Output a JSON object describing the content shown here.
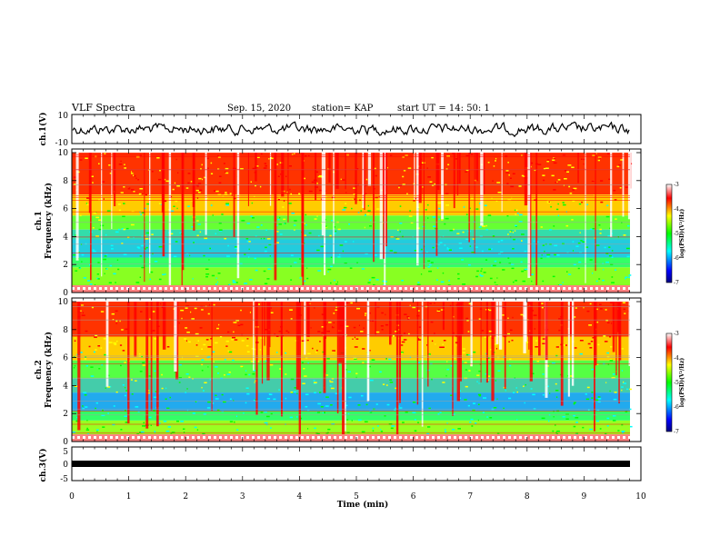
{
  "header": {
    "title": "VLF Spectra",
    "date": "Sep. 15, 2020",
    "station": "station= KAP",
    "start": "start  UT =   14: 50: 1"
  },
  "chart_data": [
    {
      "type": "line",
      "ylabel": "ch.1(V)",
      "ylim": [
        -10,
        10
      ],
      "yticks": [
        "10",
        "-10"
      ],
      "xlim": [
        0,
        10
      ],
      "description_series": "waveform",
      "color": "#000000"
    },
    {
      "type": "heatmap",
      "ylabel": "ch.1\nFrequency (kHz)",
      "ylabel_line1": "ch.1",
      "ylabel_line2": "Frequency  (kHz)",
      "ylim": [
        0,
        10
      ],
      "yticks": [
        "0",
        "2",
        "4",
        "6",
        "8",
        "10"
      ],
      "xlim": [
        0,
        10
      ],
      "colorbar": {
        "label": "log(PSD)(V²/Hz)",
        "range": [
          -7,
          -3
        ],
        "ticks": [
          "-3",
          "-4",
          "-5",
          "-6",
          "-7"
        ],
        "colors": [
          "#000080",
          "#0000ff",
          "#00ffff",
          "#00ff00",
          "#ffff00",
          "#ff0000",
          "#ffffff"
        ]
      }
    },
    {
      "type": "heatmap",
      "ylabel": "ch.2\nFrequency (kHz)",
      "ylabel_line1": "ch.2",
      "ylabel_line2": "Frequency  (kHz)",
      "ylim": [
        0,
        10
      ],
      "yticks": [
        "0",
        "2",
        "4",
        "6",
        "8",
        "10"
      ],
      "xlim": [
        0,
        10
      ],
      "colorbar": {
        "label": "log(PSD)(V²/Hz)",
        "range": [
          -7,
          -3
        ],
        "ticks": [
          "-3",
          "-4",
          "-5",
          "-6",
          "-7"
        ],
        "colors": [
          "#000080",
          "#0000ff",
          "#00ffff",
          "#00ff00",
          "#ffff00",
          "#ff0000",
          "#ffffff"
        ]
      }
    },
    {
      "type": "line",
      "ylabel": "ch.3(V)",
      "ylim": [
        -5,
        5
      ],
      "yticks": [
        "5",
        "0",
        "-5"
      ],
      "xlim": [
        0,
        10
      ],
      "color": "#000000"
    }
  ],
  "xaxis": {
    "label": "Time  (min)",
    "ticks": [
      "0",
      "1",
      "2",
      "3",
      "4",
      "5",
      "6",
      "7",
      "8",
      "9",
      "10"
    ],
    "range": [
      0,
      10
    ]
  },
  "colors": {
    "background": "#ffffff",
    "axis": "#000000"
  }
}
